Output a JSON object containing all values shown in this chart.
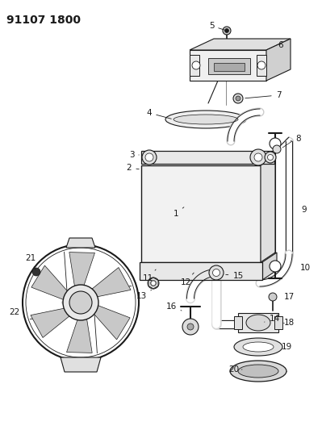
{
  "title": "91107 1800",
  "bg_color": "#ffffff",
  "dark": "#1a1a1a",
  "gray": "#888888",
  "light_gray": "#dddddd",
  "title_fontsize": 10,
  "label_fontsize": 7.5
}
